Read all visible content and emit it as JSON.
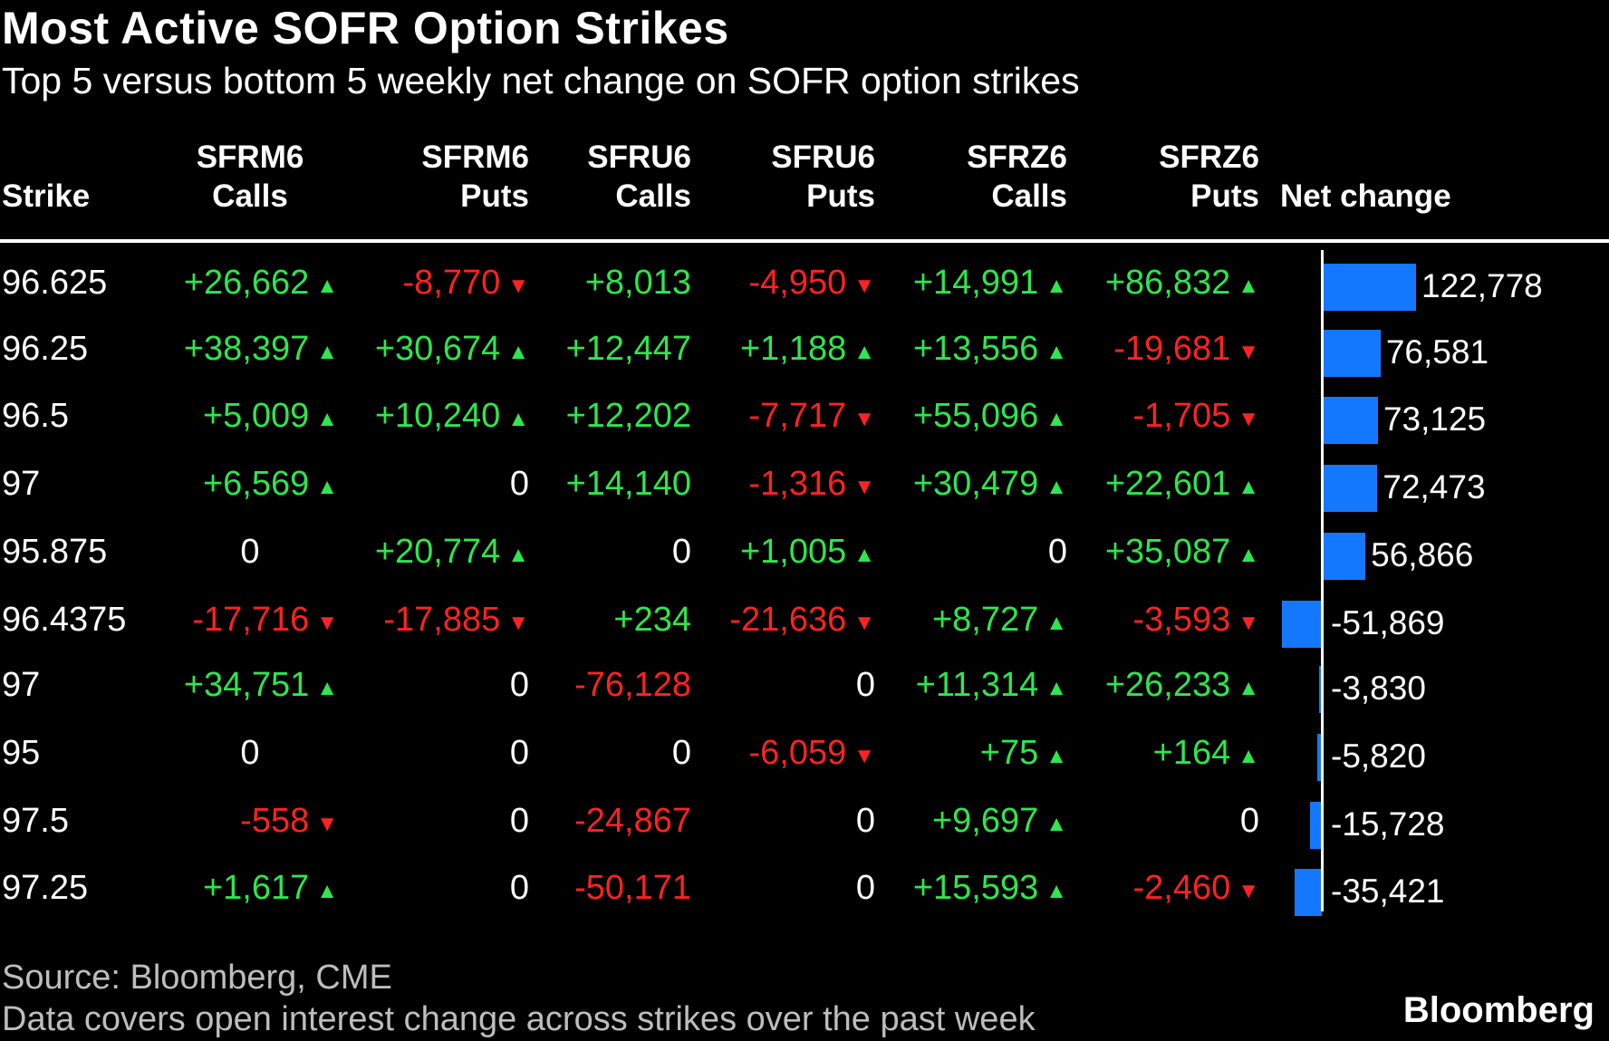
{
  "title": "Most Active SOFR Option Strikes",
  "subtitle": "Top 5 versus bottom 5 weekly net change on SOFR option strikes",
  "columns": [
    {
      "line1": "",
      "line2": "Strike"
    },
    {
      "line1": "SFRM6",
      "line2": "Calls"
    },
    {
      "line1": "SFRM6",
      "line2": "Puts"
    },
    {
      "line1": "SFRU6",
      "line2": "Calls"
    },
    {
      "line1": "SFRU6",
      "line2": "Puts"
    },
    {
      "line1": "SFRZ6",
      "line2": "Calls"
    },
    {
      "line1": "SFRZ6",
      "line2": "Puts"
    },
    {
      "line1": "",
      "line2": "Net change"
    }
  ],
  "colors": {
    "positive": "#2ee64d",
    "negative": "#ff2222",
    "bar": "#1478ff",
    "background": "#000000"
  },
  "icons": {
    "up": "triangle-up-icon",
    "down": "triangle-down-icon"
  },
  "chart_data": {
    "type": "table",
    "title": "Most Active SOFR Option Strikes",
    "subtitle": "Top 5 versus bottom 5 weekly net change on SOFR option strikes",
    "headers": [
      "Strike",
      "SFRM6 Calls",
      "SFRM6 Puts",
      "SFRU6 Calls",
      "SFRU6 Puts",
      "SFRZ6 Calls",
      "SFRZ6 Puts",
      "Net change"
    ],
    "rows": [
      {
        "strike": "96.625",
        "cells": [
          {
            "text": "+26,662",
            "value": 26662,
            "dir": "up"
          },
          {
            "text": "-8,770",
            "value": -8770,
            "dir": "down"
          },
          {
            "text": "+8,013",
            "value": 8013,
            "dir": ""
          },
          {
            "text": "-4,950",
            "value": -4950,
            "dir": "down"
          },
          {
            "text": "+14,991",
            "value": 14991,
            "dir": "up"
          },
          {
            "text": "+86,832",
            "value": 86832,
            "dir": "up"
          }
        ],
        "net": 122778,
        "net_label": "122,778"
      },
      {
        "strike": "96.25",
        "cells": [
          {
            "text": "+38,397",
            "value": 38397,
            "dir": "up"
          },
          {
            "text": "+30,674",
            "value": 30674,
            "dir": "up"
          },
          {
            "text": "+12,447",
            "value": 12447,
            "dir": ""
          },
          {
            "text": "+1,188",
            "value": 1188,
            "dir": "up"
          },
          {
            "text": "+13,556",
            "value": 13556,
            "dir": "up"
          },
          {
            "text": "-19,681",
            "value": -19681,
            "dir": "down"
          }
        ],
        "net": 76581,
        "net_label": "76,581"
      },
      {
        "strike": "96.5",
        "cells": [
          {
            "text": "+5,009",
            "value": 5009,
            "dir": "up"
          },
          {
            "text": "+10,240",
            "value": 10240,
            "dir": "up"
          },
          {
            "text": "+12,202",
            "value": 12202,
            "dir": ""
          },
          {
            "text": "-7,717",
            "value": -7717,
            "dir": "down"
          },
          {
            "text": "+55,096",
            "value": 55096,
            "dir": "up"
          },
          {
            "text": "-1,705",
            "value": -1705,
            "dir": "down"
          }
        ],
        "net": 73125,
        "net_label": "73,125"
      },
      {
        "strike": "97",
        "cells": [
          {
            "text": "+6,569",
            "value": 6569,
            "dir": "up"
          },
          {
            "text": "0",
            "value": 0,
            "dir": ""
          },
          {
            "text": "+14,140",
            "value": 14140,
            "dir": ""
          },
          {
            "text": "-1,316",
            "value": -1316,
            "dir": "down"
          },
          {
            "text": "+30,479",
            "value": 30479,
            "dir": "up"
          },
          {
            "text": "+22,601",
            "value": 22601,
            "dir": "up"
          }
        ],
        "net": 72473,
        "net_label": "72,473"
      },
      {
        "strike": "95.875",
        "cells": [
          {
            "text": "0",
            "value": 0,
            "dir": ""
          },
          {
            "text": "+20,774",
            "value": 20774,
            "dir": "up"
          },
          {
            "text": "0",
            "value": 0,
            "dir": ""
          },
          {
            "text": "+1,005",
            "value": 1005,
            "dir": "up"
          },
          {
            "text": "0",
            "value": 0,
            "dir": ""
          },
          {
            "text": "+35,087",
            "value": 35087,
            "dir": "up"
          }
        ],
        "net": 56866,
        "net_label": "56,866"
      },
      {
        "strike": "96.4375",
        "cells": [
          {
            "text": "-17,716",
            "value": -17716,
            "dir": "down"
          },
          {
            "text": "-17,885",
            "value": -17885,
            "dir": "down"
          },
          {
            "text": "+234",
            "value": 234,
            "dir": ""
          },
          {
            "text": "-21,636",
            "value": -21636,
            "dir": "down"
          },
          {
            "text": "+8,727",
            "value": 8727,
            "dir": "up"
          },
          {
            "text": "-3,593",
            "value": -3593,
            "dir": "down"
          }
        ],
        "net": -51869,
        "net_label": "-51,869"
      },
      {
        "strike": "97",
        "cells": [
          {
            "text": "+34,751",
            "value": 34751,
            "dir": "up"
          },
          {
            "text": "0",
            "value": 0,
            "dir": ""
          },
          {
            "text": "-76,128",
            "value": -76128,
            "dir": ""
          },
          {
            "text": "0",
            "value": 0,
            "dir": ""
          },
          {
            "text": "+11,314",
            "value": 11314,
            "dir": "up"
          },
          {
            "text": "+26,233",
            "value": 26233,
            "dir": "up"
          }
        ],
        "net": -3830,
        "net_label": "-3,830"
      },
      {
        "strike": "95",
        "cells": [
          {
            "text": "0",
            "value": 0,
            "dir": ""
          },
          {
            "text": "0",
            "value": 0,
            "dir": ""
          },
          {
            "text": "0",
            "value": 0,
            "dir": ""
          },
          {
            "text": "-6,059",
            "value": -6059,
            "dir": "down"
          },
          {
            "text": "+75",
            "value": 75,
            "dir": "up"
          },
          {
            "text": "+164",
            "value": 164,
            "dir": "up"
          }
        ],
        "net": -5820,
        "net_label": "-5,820"
      },
      {
        "strike": "97.5",
        "cells": [
          {
            "text": "-558",
            "value": -558,
            "dir": "down"
          },
          {
            "text": "0",
            "value": 0,
            "dir": ""
          },
          {
            "text": "-24,867",
            "value": -24867,
            "dir": ""
          },
          {
            "text": "0",
            "value": 0,
            "dir": ""
          },
          {
            "text": "+9,697",
            "value": 9697,
            "dir": "up"
          },
          {
            "text": "0",
            "value": 0,
            "dir": ""
          }
        ],
        "net": -15728,
        "net_label": "-15,728"
      },
      {
        "strike": "97.25",
        "cells": [
          {
            "text": "+1,617",
            "value": 1617,
            "dir": "up"
          },
          {
            "text": "0",
            "value": 0,
            "dir": ""
          },
          {
            "text": "-50,171",
            "value": -50171,
            "dir": ""
          },
          {
            "text": "0",
            "value": 0,
            "dir": ""
          },
          {
            "text": "+15,593",
            "value": 15593,
            "dir": "up"
          },
          {
            "text": "-2,460",
            "value": -2460,
            "dir": "down"
          }
        ],
        "net": -35421,
        "net_label": "-35,421"
      }
    ]
  },
  "footer": {
    "source": "Source: Bloomberg, CME",
    "note": "Data covers open interest change across strikes over the past week",
    "brand": "Bloomberg"
  }
}
